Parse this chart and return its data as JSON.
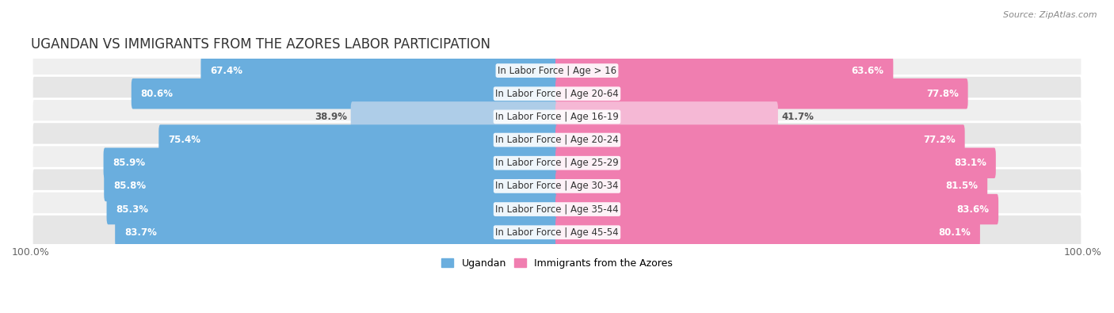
{
  "title": "UGANDAN VS IMMIGRANTS FROM THE AZORES LABOR PARTICIPATION",
  "source": "Source: ZipAtlas.com",
  "categories": [
    "In Labor Force | Age > 16",
    "In Labor Force | Age 20-64",
    "In Labor Force | Age 16-19",
    "In Labor Force | Age 20-24",
    "In Labor Force | Age 25-29",
    "In Labor Force | Age 30-34",
    "In Labor Force | Age 35-44",
    "In Labor Force | Age 45-54"
  ],
  "ugandan_values": [
    67.4,
    80.6,
    38.9,
    75.4,
    85.9,
    85.8,
    85.3,
    83.7
  ],
  "azores_values": [
    63.6,
    77.8,
    41.7,
    77.2,
    83.1,
    81.5,
    83.6,
    80.1
  ],
  "ugandan_color": "#6AAEDE",
  "ugandan_color_light": "#AECDE8",
  "azores_color": "#F07EB0",
  "azores_color_light": "#F5B8D5",
  "row_bg_color_odd": "#EFEFEF",
  "row_bg_color_even": "#E6E6E6",
  "max_value": 100.0,
  "legend_ugandan": "Ugandan",
  "legend_azores": "Immigrants from the Azores",
  "title_fontsize": 12,
  "label_fontsize": 8.5,
  "value_fontsize": 8.5,
  "axis_label_fontsize": 9,
  "bar_height": 0.72
}
